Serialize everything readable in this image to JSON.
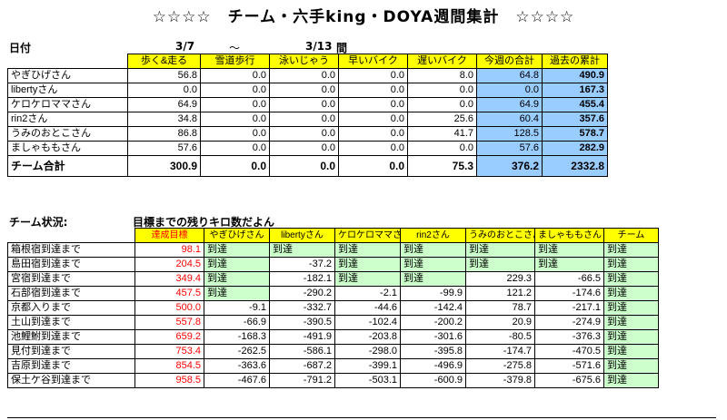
{
  "title": "☆☆☆☆　チーム・六手king・DOYA週間集計　☆☆☆☆",
  "header": {
    "date_label": "日付",
    "start_date": "3/7",
    "tilde": "～",
    "end_date": "3/13",
    "between": "間"
  },
  "weekly": {
    "columns": [
      "歩く&走る",
      "雪道歩行",
      "泳いじゃう",
      "早いバイク",
      "遅いバイク",
      "今週の合計",
      "過去の累計"
    ],
    "rows": [
      {
        "name": "やぎひげさん",
        "values": [
          "56.8",
          "0.0",
          "0.0",
          "0.0",
          "8.0",
          "64.8",
          "490.9"
        ]
      },
      {
        "name": "libertyさん",
        "values": [
          "0.0",
          "0.0",
          "0.0",
          "0.0",
          "0.0",
          "0.0",
          "167.3"
        ]
      },
      {
        "name": "ケロケロママさん",
        "values": [
          "64.9",
          "0.0",
          "0.0",
          "0.0",
          "0.0",
          "64.9",
          "455.4"
        ]
      },
      {
        "name": "rin2さん",
        "values": [
          "34.8",
          "0.0",
          "0.0",
          "0.0",
          "25.6",
          "60.4",
          "357.6"
        ]
      },
      {
        "name": "うみのおとこさん",
        "values": [
          "86.8",
          "0.0",
          "0.0",
          "0.0",
          "41.7",
          "128.5",
          "578.7"
        ]
      },
      {
        "name": "ましゃももさん",
        "values": [
          "57.6",
          "0.0",
          "0.0",
          "0.0",
          "0.0",
          "57.6",
          "282.9"
        ]
      }
    ],
    "total": {
      "name": "チーム合計",
      "values": [
        "300.9",
        "0.0",
        "0.0",
        "0.0",
        "75.3",
        "376.2",
        "2332.8"
      ]
    }
  },
  "status": {
    "label": "チーム状況:",
    "note": "目標までの残りキロ数だよん",
    "columns": [
      "達成目標",
      "やぎひげさん",
      "libertyさん",
      "ケロケロママさん",
      "rin2さん",
      "うみのおとこさん",
      "ましゃももさん",
      "チーム"
    ],
    "rows": [
      {
        "name": "箱根宿到達まで",
        "target": "98.1",
        "cells": [
          "到達",
          "到達",
          "到達",
          "到達",
          "到達",
          "到達",
          "到達"
        ]
      },
      {
        "name": "島田宿到達まで",
        "target": "204.5",
        "cells": [
          "到達",
          "-37.2",
          "到達",
          "到達",
          "到達",
          "到達",
          "到達"
        ]
      },
      {
        "name": "宮宿到達まで",
        "target": "349.4",
        "cells": [
          "到達",
          "-182.1",
          "到達",
          "到達",
          "229.3",
          "-66.5",
          "到達"
        ]
      },
      {
        "name": "石部宿到達まで",
        "target": "457.5",
        "cells": [
          "到達",
          "-290.2",
          "-2.1",
          "-99.9",
          "121.2",
          "-174.6",
          "到達"
        ]
      },
      {
        "name": "京都入りまで",
        "target": "500.0",
        "cells": [
          "-9.1",
          "-332.7",
          "-44.6",
          "-142.4",
          "78.7",
          "-217.1",
          "到達"
        ]
      },
      {
        "name": "土山到達まで",
        "target": "557.8",
        "cells": [
          "-66.9",
          "-390.5",
          "-102.4",
          "-200.2",
          "20.9",
          "-274.9",
          "到達"
        ]
      },
      {
        "name": "池鯉鮒到達まで",
        "target": "659.2",
        "cells": [
          "-168.3",
          "-491.9",
          "-203.8",
          "-301.6",
          "-80.5",
          "-376.3",
          "到達"
        ]
      },
      {
        "name": "見付到達まで",
        "target": "753.4",
        "cells": [
          "-262.5",
          "-586.1",
          "-298.0",
          "-395.8",
          "-174.7",
          "-470.5",
          "到達"
        ]
      },
      {
        "name": "吉原到達まで",
        "target": "854.5",
        "cells": [
          "-363.6",
          "-687.2",
          "-399.1",
          "-496.9",
          "-275.8",
          "-571.6",
          "到達"
        ]
      },
      {
        "name": "保土ケ谷到達まで",
        "target": "958.5",
        "cells": [
          "-467.6",
          "-791.2",
          "-503.1",
          "-600.9",
          "-379.8",
          "-675.6",
          "到達"
        ]
      }
    ]
  },
  "colors": {
    "header_yellow": "#ffff00",
    "total_blue": "#99ccff",
    "reached_green": "#ccffcc",
    "target_red": "#ff0000"
  }
}
